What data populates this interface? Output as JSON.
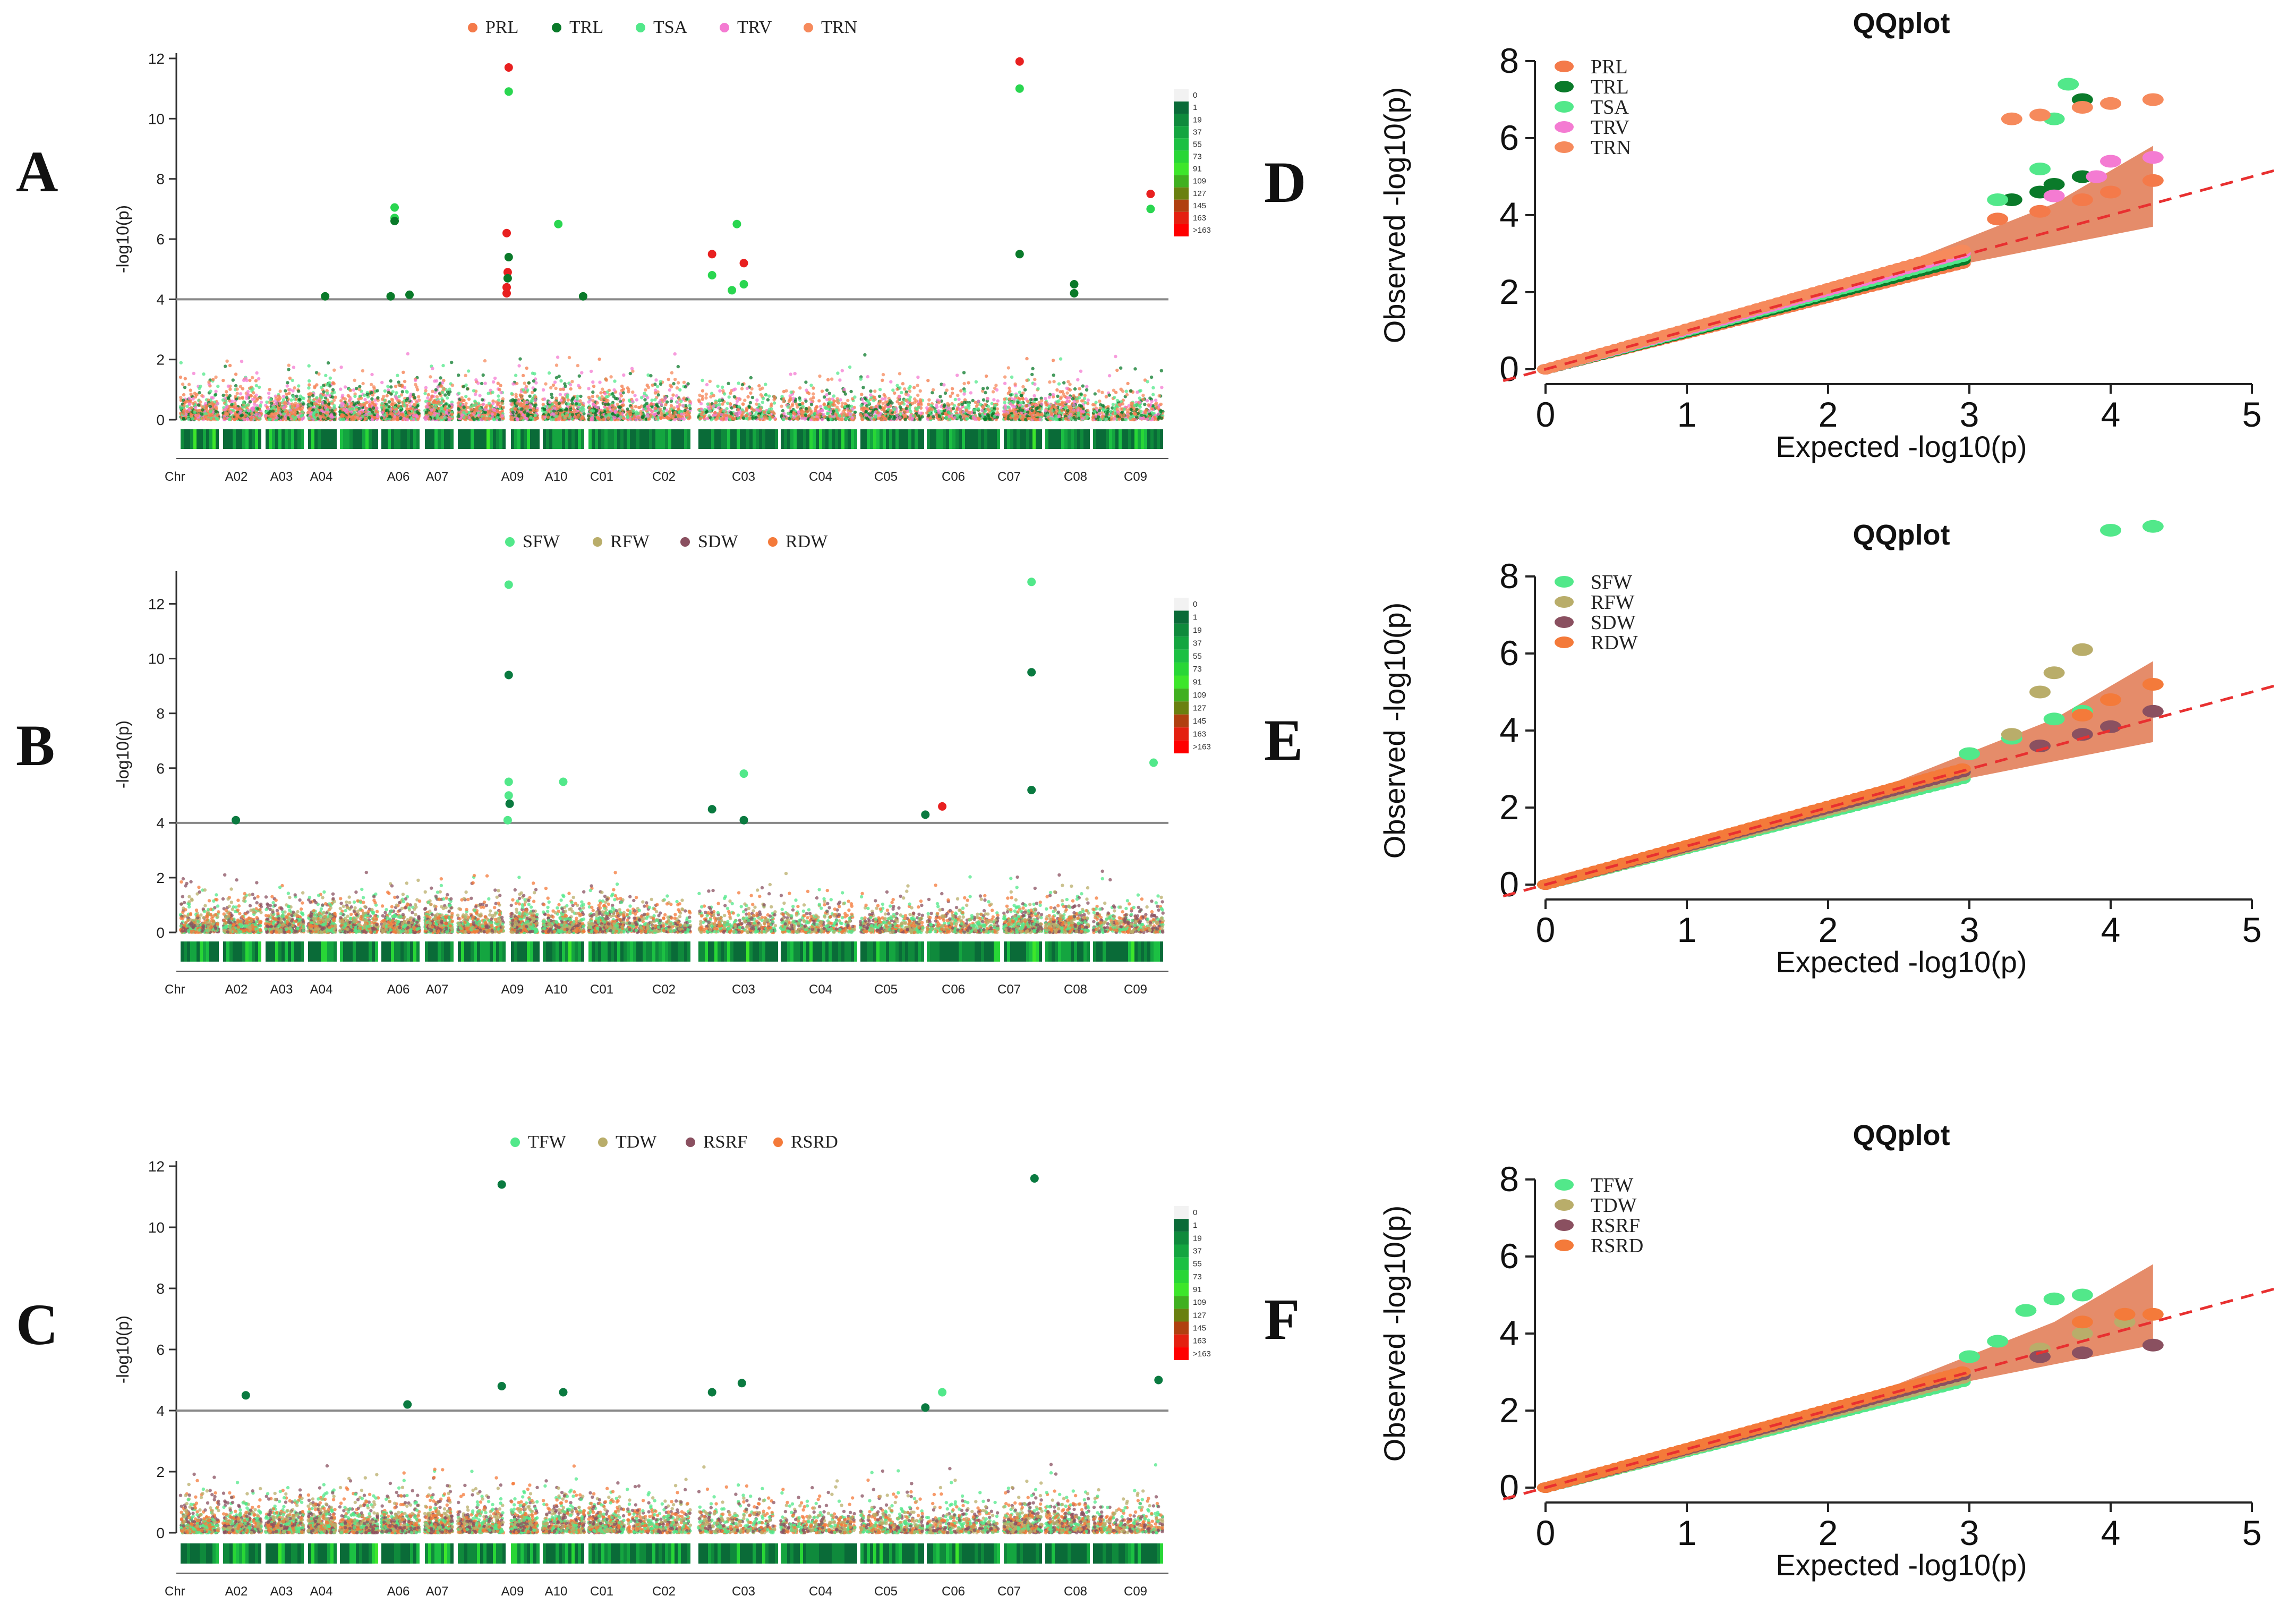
{
  "figure": {
    "panel_letters": [
      "A",
      "B",
      "C",
      "D",
      "E",
      "F"
    ],
    "colors": {
      "PRL": "#f47a4a",
      "TRL": "#0a7a2a",
      "TSA": "#52e88a",
      "TRV": "#f47bd2",
      "TRN": "#f68a5c",
      "SFW": "#52e88a",
      "RFW": "#b9ad6a",
      "SDW": "#8a5060",
      "RDW": "#f47a3a",
      "TFW": "#52e88a",
      "TDW": "#b9ad6a",
      "RSRF": "#8a5060",
      "RSRD": "#f47a3a",
      "red_line": "#e83030",
      "ci_band": "#e07850",
      "threshold": "#888888"
    }
  },
  "chart_data": [
    {
      "panel": "A",
      "type": "scatter",
      "subtype": "manhattan",
      "legend": [
        "PRL",
        "TRL",
        "TSA",
        "TRV",
        "TRN"
      ],
      "ylabel": "-log10(p)",
      "ylim": [
        0,
        12
      ],
      "yticks": [
        "0",
        "2",
        "4",
        "6",
        "8",
        "10",
        "12"
      ],
      "threshold": 4,
      "xlabel_prefix": "Chr",
      "chromosomes": [
        "A02",
        "A03",
        "A04",
        "A06",
        "A07",
        "A09",
        "A10",
        "C01",
        "C02",
        "C03",
        "C04",
        "C05",
        "C06",
        "C07",
        "C08",
        "C09"
      ],
      "density_legend": [
        "0",
        "1",
        "19",
        "37",
        "55",
        "73",
        "91",
        "109",
        "127",
        "145",
        "163",
        ">163"
      ],
      "significant": [
        {
          "trait": "TRL",
          "pos": 0.15,
          "y": 4.1
        },
        {
          "trait": "TSA",
          "pos": 0.22,
          "y": 7.05
        },
        {
          "trait": "TSA",
          "pos": 0.22,
          "y": 6.7
        },
        {
          "trait": "TRL",
          "pos": 0.22,
          "y": 6.6
        },
        {
          "trait": "TRL",
          "pos": 0.216,
          "y": 4.1
        },
        {
          "trait": "TRL",
          "pos": 0.235,
          "y": 4.15
        },
        {
          "trait": "PRL",
          "pos": 0.335,
          "y": 11.7
        },
        {
          "trait": "TSA",
          "pos": 0.335,
          "y": 10.9
        },
        {
          "trait": "PRL",
          "pos": 0.333,
          "y": 6.2
        },
        {
          "trait": "TRL",
          "pos": 0.335,
          "y": 5.4
        },
        {
          "trait": "PRL",
          "pos": 0.334,
          "y": 4.9
        },
        {
          "trait": "TRL",
          "pos": 0.334,
          "y": 4.7
        },
        {
          "trait": "PRL",
          "pos": 0.333,
          "y": 4.4
        },
        {
          "trait": "PRL",
          "pos": 0.333,
          "y": 4.2
        },
        {
          "trait": "TSA",
          "pos": 0.385,
          "y": 6.5
        },
        {
          "trait": "TRL",
          "pos": 0.41,
          "y": 4.1
        },
        {
          "trait": "PRL",
          "pos": 0.54,
          "y": 5.5
        },
        {
          "trait": "TSA",
          "pos": 0.54,
          "y": 4.8
        },
        {
          "trait": "TSA",
          "pos": 0.565,
          "y": 6.5
        },
        {
          "trait": "PRL",
          "pos": 0.572,
          "y": 5.2
        },
        {
          "trait": "TSA",
          "pos": 0.572,
          "y": 4.5
        },
        {
          "trait": "TSA",
          "pos": 0.56,
          "y": 4.3
        },
        {
          "trait": "PRL",
          "pos": 0.85,
          "y": 11.9
        },
        {
          "trait": "TSA",
          "pos": 0.85,
          "y": 11.0
        },
        {
          "trait": "TRL",
          "pos": 0.85,
          "y": 5.5
        },
        {
          "trait": "TRL",
          "pos": 0.905,
          "y": 4.5
        },
        {
          "trait": "TRL",
          "pos": 0.905,
          "y": 4.2
        },
        {
          "trait": "PRL",
          "pos": 0.982,
          "y": 7.5
        },
        {
          "trait": "TSA",
          "pos": 0.982,
          "y": 7.0
        }
      ]
    },
    {
      "panel": "B",
      "type": "scatter",
      "subtype": "manhattan",
      "legend": [
        "SFW",
        "RFW",
        "SDW",
        "RDW"
      ],
      "ylabel": "-log10(p)",
      "ylim": [
        0,
        13
      ],
      "yticks": [
        "0",
        "2",
        "4",
        "6",
        "8",
        "10",
        "12"
      ],
      "threshold": 4,
      "xlabel_prefix": "Chr",
      "chromosomes": [
        "A02",
        "A03",
        "A04",
        "A06",
        "A07",
        "A09",
        "A10",
        "C01",
        "C02",
        "C03",
        "C04",
        "C05",
        "C06",
        "C07",
        "C08",
        "C09"
      ],
      "density_legend": [
        "0",
        "1",
        "19",
        "37",
        "55",
        "73",
        "91",
        "109",
        "127",
        "145",
        "163",
        ">163"
      ],
      "significant": [
        {
          "trait": "SDW_dark",
          "pos": 0.06,
          "y": 4.1
        },
        {
          "trait": "SFW",
          "pos": 0.335,
          "y": 12.7
        },
        {
          "trait": "SDW_dark",
          "pos": 0.335,
          "y": 9.4
        },
        {
          "trait": "SFW",
          "pos": 0.335,
          "y": 5.5
        },
        {
          "trait": "SFW",
          "pos": 0.335,
          "y": 5.0
        },
        {
          "trait": "SDW_dark",
          "pos": 0.336,
          "y": 4.7
        },
        {
          "trait": "SFW",
          "pos": 0.334,
          "y": 4.1
        },
        {
          "trait": "SFW",
          "pos": 0.39,
          "y": 5.5
        },
        {
          "trait": "SDW_dark",
          "pos": 0.54,
          "y": 4.5
        },
        {
          "trait": "SFW",
          "pos": 0.572,
          "y": 5.8
        },
        {
          "trait": "SDW_dark",
          "pos": 0.572,
          "y": 4.1
        },
        {
          "trait": "SDW_dark",
          "pos": 0.755,
          "y": 4.3
        },
        {
          "trait": "red",
          "pos": 0.772,
          "y": 4.6
        },
        {
          "trait": "SFW",
          "pos": 0.862,
          "y": 12.8
        },
        {
          "trait": "SDW_dark",
          "pos": 0.862,
          "y": 9.5
        },
        {
          "trait": "SDW_dark",
          "pos": 0.862,
          "y": 5.2
        },
        {
          "trait": "SFW",
          "pos": 0.985,
          "y": 6.2
        }
      ]
    },
    {
      "panel": "C",
      "type": "scatter",
      "subtype": "manhattan",
      "legend": [
        "TFW",
        "TDW",
        "RSRF",
        "RSRD"
      ],
      "ylabel": "-log10(p)",
      "ylim": [
        0,
        12
      ],
      "yticks": [
        "0",
        "2",
        "4",
        "6",
        "8",
        "10",
        "12"
      ],
      "threshold": 4,
      "xlabel_prefix": "Chr",
      "chromosomes": [
        "A02",
        "A03",
        "A04",
        "A06",
        "A07",
        "A09",
        "A10",
        "C01",
        "C02",
        "C03",
        "C04",
        "C05",
        "C06",
        "C07",
        "C08",
        "C09"
      ],
      "density_legend": [
        "0",
        "1",
        "19",
        "37",
        "55",
        "73",
        "91",
        "109",
        "127",
        "145",
        "163",
        ">163"
      ],
      "significant": [
        {
          "trait": "RSRF_dark",
          "pos": 0.07,
          "y": 4.5
        },
        {
          "trait": "RSRF_dark",
          "pos": 0.233,
          "y": 4.2
        },
        {
          "trait": "RSRF_dark",
          "pos": 0.328,
          "y": 11.4
        },
        {
          "trait": "RSRF_dark",
          "pos": 0.328,
          "y": 4.8
        },
        {
          "trait": "RSRF_dark",
          "pos": 0.39,
          "y": 4.6
        },
        {
          "trait": "RSRF_dark",
          "pos": 0.54,
          "y": 4.6
        },
        {
          "trait": "RSRF_dark",
          "pos": 0.57,
          "y": 4.9
        },
        {
          "trait": "RSRF_dark",
          "pos": 0.755,
          "y": 4.1
        },
        {
          "trait": "TFW",
          "pos": 0.772,
          "y": 4.6
        },
        {
          "trait": "RSRF_dark",
          "pos": 0.865,
          "y": 11.6
        },
        {
          "trait": "RSRF_dark",
          "pos": 0.99,
          "y": 5.0
        }
      ]
    },
    {
      "panel": "D",
      "type": "scatter",
      "subtype": "qqplot",
      "title": "QQplot",
      "xlabel": "Expected  -log10(p)",
      "ylabel": "Observed -log10(p)",
      "xlim": [
        0,
        5
      ],
      "ylim": [
        0,
        8
      ],
      "xticks": [
        "0",
        "1",
        "2",
        "3",
        "4",
        "5"
      ],
      "yticks": [
        "0",
        "2",
        "4",
        "6",
        "8"
      ],
      "legend": [
        "PRL",
        "TRL",
        "TSA",
        "TRV",
        "TRN"
      ],
      "series": [
        {
          "name": "PRL",
          "tail": [
            [
              3.2,
              3.9
            ],
            [
              3.5,
              4.1
            ],
            [
              3.8,
              4.4
            ],
            [
              4.0,
              4.6
            ],
            [
              4.3,
              4.9
            ]
          ]
        },
        {
          "name": "TRL",
          "tail": [
            [
              3.3,
              4.4
            ],
            [
              3.5,
              4.6
            ],
            [
              3.6,
              4.8
            ],
            [
              3.8,
              5.0
            ],
            [
              3.8,
              7.0
            ]
          ]
        },
        {
          "name": "TSA",
          "tail": [
            [
              3.2,
              4.4
            ],
            [
              3.5,
              5.2
            ],
            [
              3.6,
              6.5
            ],
            [
              3.7,
              7.4
            ]
          ]
        },
        {
          "name": "TRV",
          "tail": [
            [
              3.6,
              4.5
            ],
            [
              3.9,
              5.0
            ],
            [
              4.0,
              5.4
            ],
            [
              4.3,
              5.5
            ]
          ]
        },
        {
          "name": "TRN",
          "tail": [
            [
              3.3,
              6.5
            ],
            [
              3.5,
              6.6
            ],
            [
              3.8,
              6.8
            ],
            [
              4.0,
              6.9
            ],
            [
              4.3,
              7.0
            ]
          ]
        }
      ]
    },
    {
      "panel": "E",
      "type": "scatter",
      "subtype": "qqplot",
      "title": "QQplot",
      "xlabel": "Expected  -log10(p)",
      "ylabel": "Observed -log10(p)",
      "xlim": [
        0,
        5
      ],
      "ylim": [
        0,
        8
      ],
      "xticks": [
        "0",
        "1",
        "2",
        "3",
        "4",
        "5"
      ],
      "yticks": [
        "0",
        "2",
        "4",
        "6",
        "8"
      ],
      "legend": [
        "SFW",
        "RFW",
        "SDW",
        "RDW"
      ],
      "series": [
        {
          "name": "SFW",
          "tail": [
            [
              3.0,
              3.4
            ],
            [
              3.3,
              3.8
            ],
            [
              3.6,
              4.3
            ],
            [
              3.8,
              4.5
            ],
            [
              4.0,
              9.2
            ],
            [
              4.3,
              9.3
            ]
          ]
        },
        {
          "name": "RFW",
          "tail": [
            [
              3.3,
              3.9
            ],
            [
              3.5,
              5.0
            ],
            [
              3.6,
              5.5
            ],
            [
              3.8,
              6.1
            ]
          ]
        },
        {
          "name": "SDW",
          "tail": [
            [
              3.5,
              3.6
            ],
            [
              3.8,
              3.9
            ],
            [
              4.0,
              4.1
            ],
            [
              4.3,
              4.5
            ]
          ]
        },
        {
          "name": "RDW",
          "tail": [
            [
              3.8,
              4.4
            ],
            [
              4.0,
              4.8
            ],
            [
              4.3,
              5.2
            ]
          ]
        }
      ]
    },
    {
      "panel": "F",
      "type": "scatter",
      "subtype": "qqplot",
      "title": "QQplot",
      "xlabel": "Expected  -log10(p)",
      "ylabel": "Observed -log10(p)",
      "xlim": [
        0,
        5
      ],
      "ylim": [
        0,
        8
      ],
      "xticks": [
        "0",
        "1",
        "2",
        "3",
        "4",
        "5"
      ],
      "yticks": [
        "0",
        "2",
        "4",
        "6",
        "8"
      ],
      "legend": [
        "TFW",
        "TDW",
        "RSRF",
        "RSRD"
      ],
      "series": [
        {
          "name": "TFW",
          "tail": [
            [
              3.0,
              3.4
            ],
            [
              3.2,
              3.8
            ],
            [
              3.4,
              4.6
            ],
            [
              3.6,
              4.9
            ],
            [
              3.8,
              5.0
            ]
          ]
        },
        {
          "name": "TDW",
          "tail": [
            [
              3.5,
              3.6
            ],
            [
              3.8,
              4.0
            ],
            [
              4.1,
              4.3
            ]
          ]
        },
        {
          "name": "RSRF",
          "tail": [
            [
              3.5,
              3.4
            ],
            [
              3.8,
              3.5
            ],
            [
              4.3,
              3.7
            ]
          ]
        },
        {
          "name": "RSRD",
          "tail": [
            [
              3.8,
              4.3
            ],
            [
              4.1,
              4.5
            ],
            [
              4.3,
              4.5
            ]
          ]
        }
      ]
    }
  ]
}
